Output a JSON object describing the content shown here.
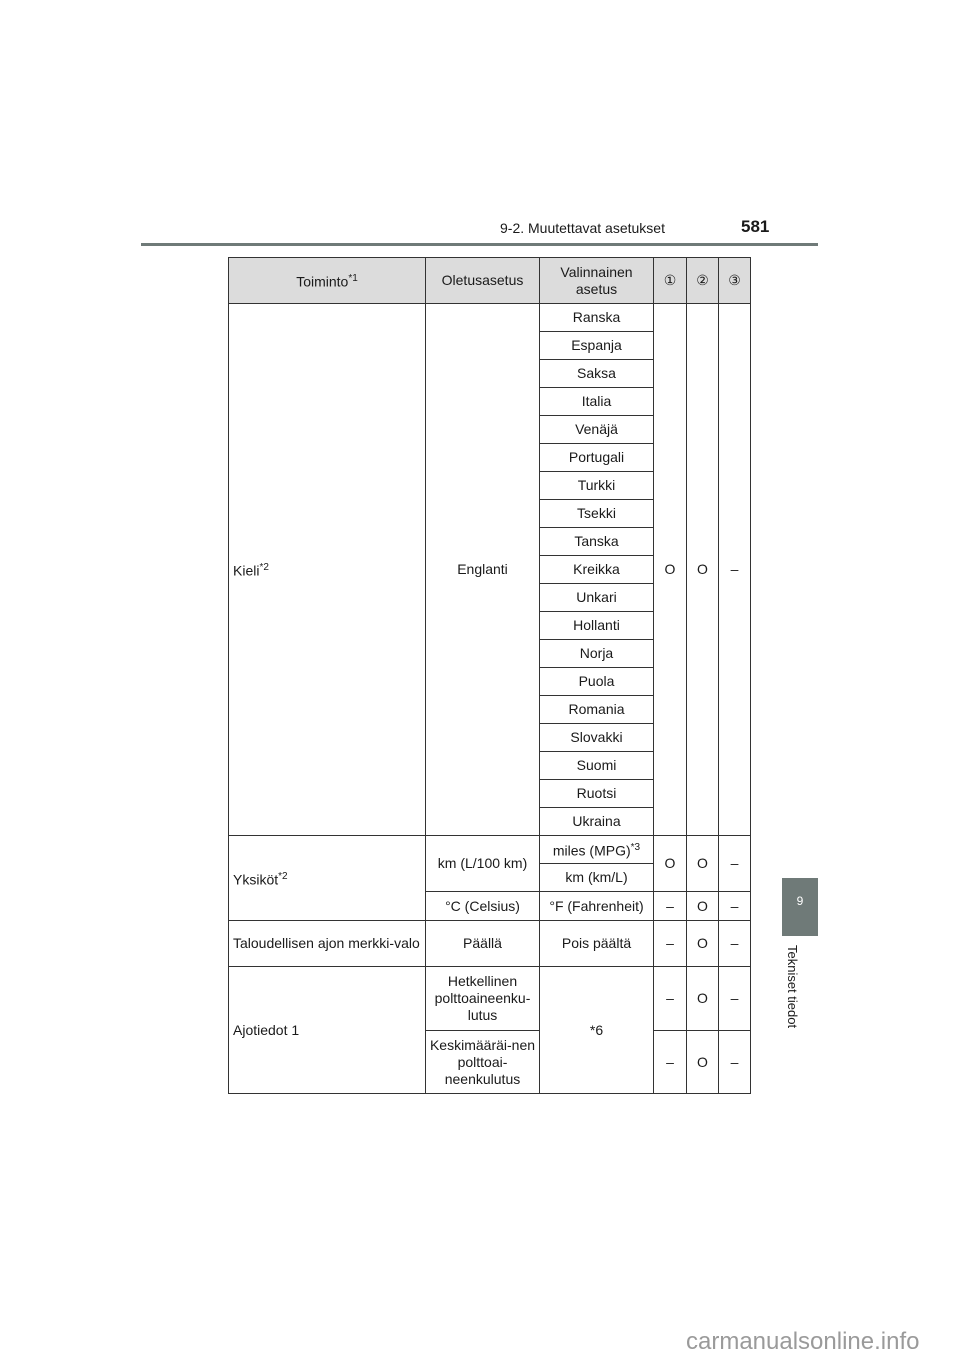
{
  "header": {
    "section": "9-2. Muutettavat asetukset",
    "page_number": "581"
  },
  "side_tab": {
    "number": "9",
    "label": "Tekniset tiedot"
  },
  "table": {
    "headers": [
      "Toiminto",
      "Oletusasetus",
      "Valinnainen asetus",
      "①",
      "②",
      "③"
    ],
    "header_note": "*1",
    "kieli": {
      "label": "Kieli",
      "note": "*2",
      "default": "Englanti",
      "options": [
        "Ranska",
        "Espanja",
        "Saksa",
        "Italia",
        "Venäjä",
        "Portugali",
        "Turkki",
        "Tsekki",
        "Tanska",
        "Kreikka",
        "Unkari",
        "Hollanti",
        "Norja",
        "Puola",
        "Romania",
        "Slovakki",
        "Suomi",
        "Ruotsi",
        "Ukraina"
      ],
      "c1": "O",
      "c2": "O",
      "c3": "–"
    },
    "yksikot": {
      "label": "Yksiköt",
      "note": "*2",
      "rows": [
        {
          "default": "km (L/100 km)",
          "options": [
            "miles (MPG)",
            "km (km/L)"
          ],
          "option_note": "*3",
          "c1": "O",
          "c2": "O",
          "c3": "–"
        },
        {
          "default": "°C (Celsius)",
          "option": "°F (Fahrenheit)",
          "c1": "–",
          "c2": "O",
          "c3": "–"
        }
      ]
    },
    "taloudellisen": {
      "label": "Taloudellisen ajon merkki-valo",
      "default": "Päällä",
      "option": "Pois päältä",
      "c1": "–",
      "c2": "O",
      "c3": "–"
    },
    "ajotiedot": {
      "label": "Ajotiedot 1",
      "option": "*6",
      "rows": [
        {
          "default": "Hetkellinen polttoaineenku-lutus",
          "c1": "–",
          "c2": "O",
          "c3": "–"
        },
        {
          "default": "Keskimääräi-nen polttoai-neenkulutus",
          "c1": "–",
          "c2": "O",
          "c3": "–"
        }
      ]
    }
  },
  "watermark": "carmanualsonline.info"
}
